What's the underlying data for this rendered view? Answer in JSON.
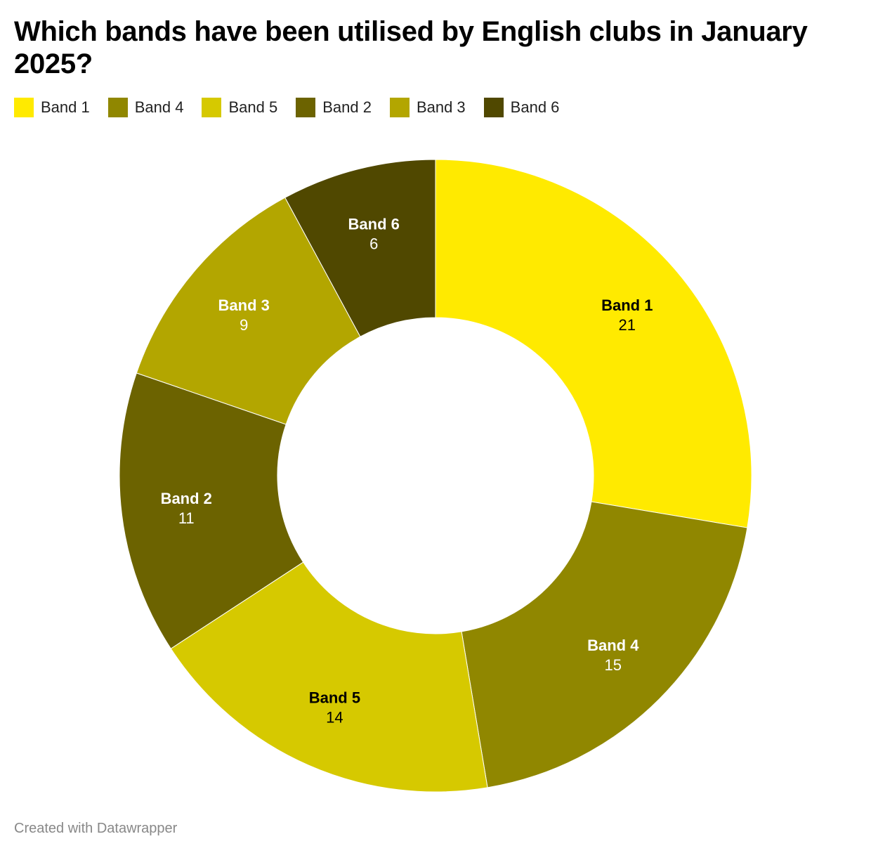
{
  "chart_data": {
    "type": "pie",
    "variant": "donut",
    "title": "Which bands have been utilised by English clubs in January 2025?",
    "categories": [
      "Band 1",
      "Band 4",
      "Band 5",
      "Band 2",
      "Band 3",
      "Band 6"
    ],
    "values": [
      21,
      15,
      14,
      11,
      9,
      6
    ],
    "colors": [
      "#ffea00",
      "#908700",
      "#d6c900",
      "#6c6300",
      "#b3a600",
      "#504800"
    ],
    "label_colors": [
      "#000000",
      "#ffffff",
      "#000000",
      "#ffffff",
      "#ffffff",
      "#ffffff"
    ],
    "legend_position": "top-left",
    "grid": false
  },
  "footer": {
    "credit": "Created with Datawrapper"
  }
}
